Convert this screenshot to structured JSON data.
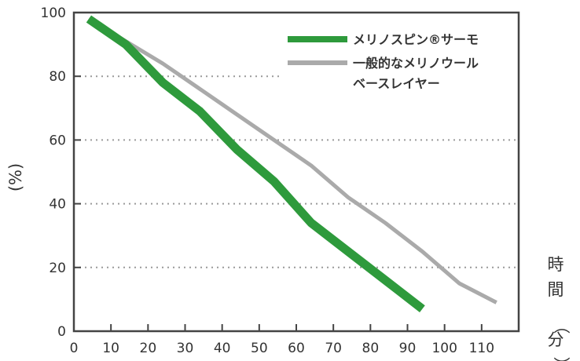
{
  "chart_data": {
    "type": "line",
    "title": "",
    "ylabel": "(%)",
    "xlabel": "時間（分）",
    "xlabel_chars": [
      "時",
      "間",
      "（",
      "分",
      "）"
    ],
    "xlim": [
      0,
      120
    ],
    "ylim": [
      0,
      100
    ],
    "x_ticks": [
      0,
      10,
      20,
      30,
      40,
      50,
      60,
      70,
      80,
      90,
      100,
      110
    ],
    "x_tick_labels": [
      "0",
      "10",
      "20",
      "30",
      "40",
      "50",
      "60",
      "70",
      "80",
      "90",
      "100",
      "110"
    ],
    "y_ticks": [
      0,
      20,
      40,
      60,
      80,
      100
    ],
    "y_tick_labels": [
      "0",
      "20",
      "40",
      "60",
      "80",
      "100"
    ],
    "grid": "horizontal dotted",
    "legend_position": "top-right",
    "series": [
      {
        "name": "メリノスピン®サーモ",
        "color": "#2e9a3c",
        "x": [
          4,
          14,
          24,
          34,
          44,
          54,
          64,
          74,
          84,
          94
        ],
        "y": [
          98,
          90,
          78,
          69,
          57,
          47,
          34,
          25,
          16,
          7
        ]
      },
      {
        "name": "一般的なメリノウールベースレイヤー",
        "name_lines": [
          "一般的なメリノウール",
          "ベースレイヤー"
        ],
        "color": "#aaaaaa",
        "x": [
          4,
          14,
          24,
          34,
          44,
          54,
          64,
          74,
          84,
          94,
          104,
          114
        ],
        "y": [
          98,
          91,
          84,
          76,
          68,
          60,
          52,
          42,
          34,
          25,
          15,
          9
        ]
      }
    ]
  }
}
